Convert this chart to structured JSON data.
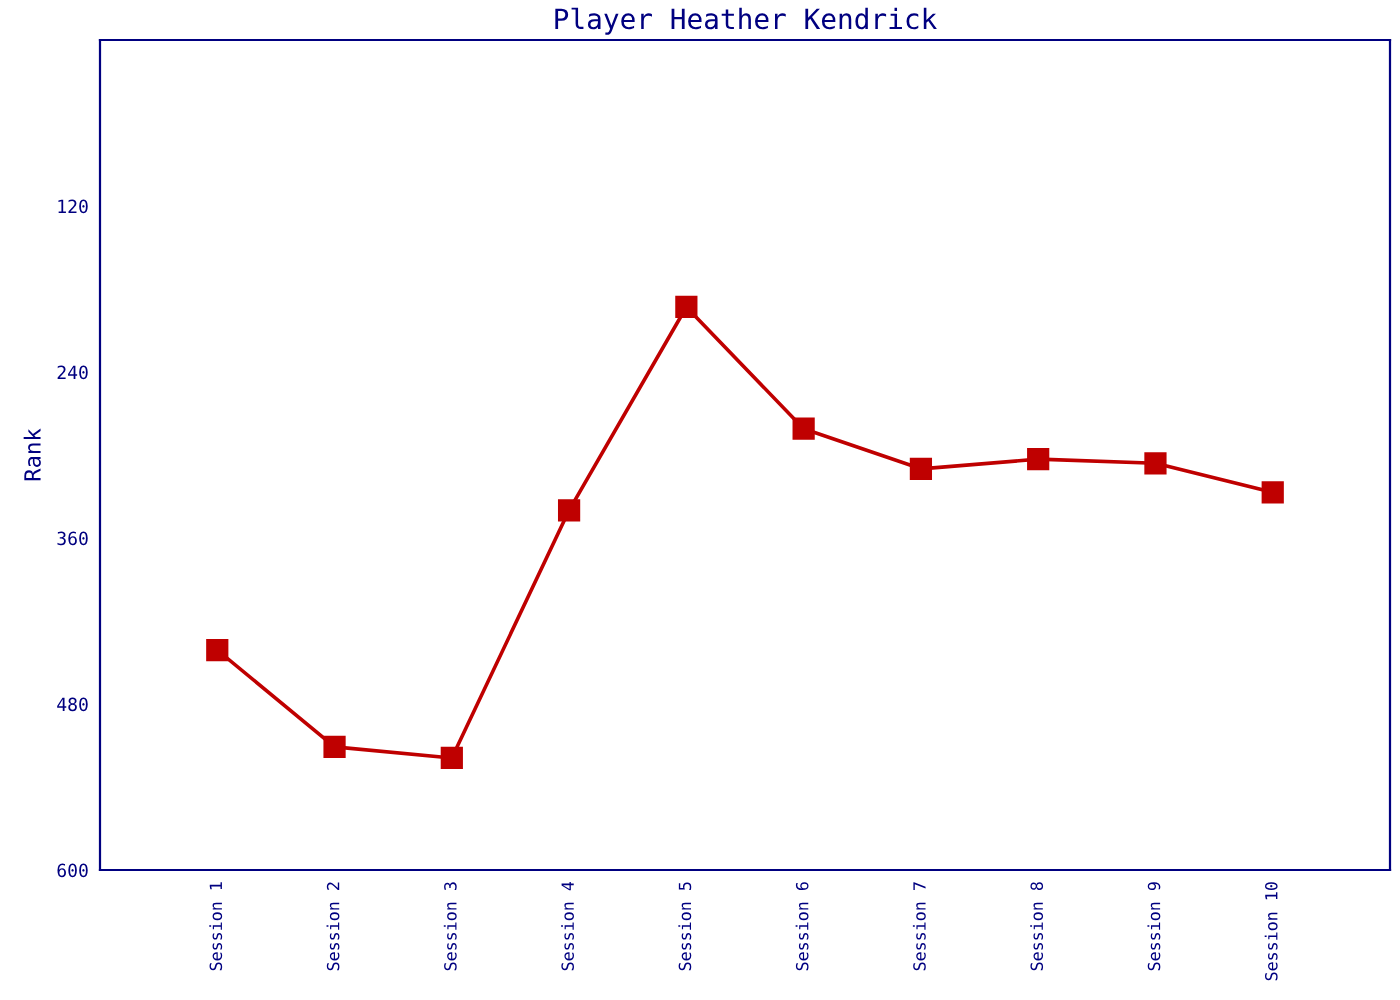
{
  "chart_data": {
    "type": "line",
    "title": "Player Heather Kendrick",
    "ylabel": "Rank",
    "categories": [
      "Session 1",
      "Session 2",
      "Session 3",
      "Session 4",
      "Session 5",
      "Session 6",
      "Session 7",
      "Session 8",
      "Session 9",
      "Session 10"
    ],
    "series": [
      {
        "color": "#bf0000",
        "values": [
          441,
          511,
          519,
          340,
          193,
          281,
          310,
          303,
          306,
          327
        ]
      }
    ],
    "ylim": [
      600,
      0
    ],
    "yticks": [
      120,
      240,
      360,
      480,
      600
    ],
    "marker": "square",
    "line_style": "solid",
    "grid": false,
    "legend": false
  }
}
